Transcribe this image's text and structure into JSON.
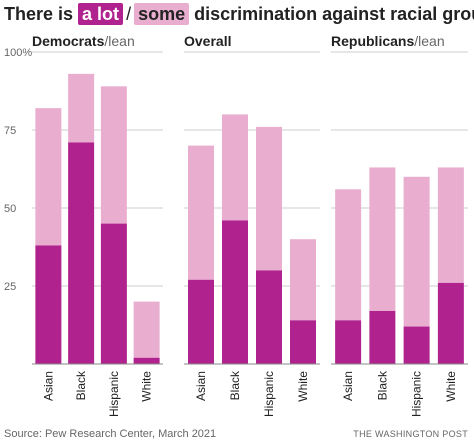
{
  "title": {
    "before": "There is",
    "a_lot": "a lot",
    "slash": "/",
    "some": "some",
    "after": "discrimination against racial group"
  },
  "colors": {
    "a_lot": "#b0238f",
    "some": "#e9aecf",
    "grid": "#cccccc",
    "text": "#222222",
    "muted": "#666666"
  },
  "chart_data": {
    "type": "bar",
    "stacked": true,
    "ylim": [
      0,
      100
    ],
    "y_ticks": [
      {
        "value": 25,
        "label": "25"
      },
      {
        "value": 50,
        "label": "50"
      },
      {
        "value": 75,
        "label": "75"
      },
      {
        "value": 100,
        "label": "100%"
      }
    ],
    "grid": true,
    "categories": [
      "Asian",
      "Black",
      "Hispanic",
      "White"
    ],
    "panels": [
      {
        "title_main": "Democrats",
        "title_sub": "/lean",
        "a_lot": [
          38,
          71,
          45,
          2
        ],
        "total": [
          82,
          93,
          89,
          20
        ]
      },
      {
        "title_main": "Overall",
        "title_sub": "",
        "a_lot": [
          27,
          46,
          30,
          14
        ],
        "total": [
          70,
          80,
          76,
          40
        ]
      },
      {
        "title_main": "Republicans",
        "title_sub": "/lean",
        "a_lot": [
          14,
          17,
          12,
          26
        ],
        "total": [
          56,
          63,
          60,
          63
        ]
      }
    ]
  },
  "footer": {
    "source": "Source: Pew Research Center, March 2021",
    "credit": "THE WASHINGTON POST"
  }
}
